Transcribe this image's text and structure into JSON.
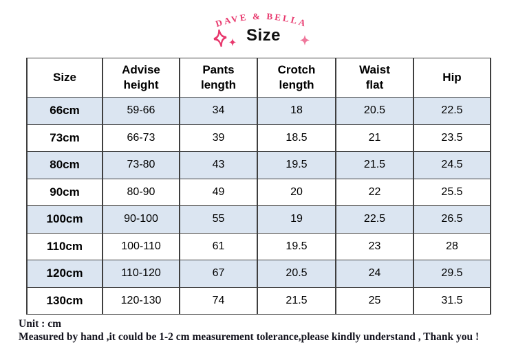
{
  "header": {
    "brand": "DAVE & BELLA"
  },
  "colors": {
    "accent_pink": "#e8396e",
    "row_stripe_blue": "#dbe5f1",
    "table_border": "#3f3f3f",
    "footer_text": "#15151f"
  },
  "chart_data": {
    "type": "table",
    "title": "Size",
    "unit": "cm",
    "columns": [
      "Size",
      "Advise height",
      "Pants length",
      "Crotch length",
      "Waist flat",
      "Hip"
    ],
    "rows": [
      [
        "66cm",
        "59-66",
        "34",
        "18",
        "20.5",
        "22.5"
      ],
      [
        "73cm",
        "66-73",
        "39",
        "18.5",
        "21",
        "23.5"
      ],
      [
        "80cm",
        "73-80",
        "43",
        "19.5",
        "21.5",
        "24.5"
      ],
      [
        "90cm",
        "80-90",
        "49",
        "20",
        "22",
        "25.5"
      ],
      [
        "100cm",
        "90-100",
        "55",
        "19",
        "22.5",
        "26.5"
      ],
      [
        "110cm",
        "100-110",
        "61",
        "19.5",
        "23",
        "28"
      ],
      [
        "120cm",
        "110-120",
        "67",
        "20.5",
        "24",
        "29.5"
      ],
      [
        "130cm",
        "120-130",
        "74",
        "21.5",
        "25",
        "31.5"
      ]
    ],
    "layout_hints": {
      "striped_rows": "odd rows light blue starting with 66cm",
      "header_row_two_line_labels": true
    }
  },
  "footer": {
    "unit": "Unit : cm",
    "note": "Measured by hand ,it could be 1-2 cm measurement tolerance,please kindly understand , Thank you !"
  }
}
